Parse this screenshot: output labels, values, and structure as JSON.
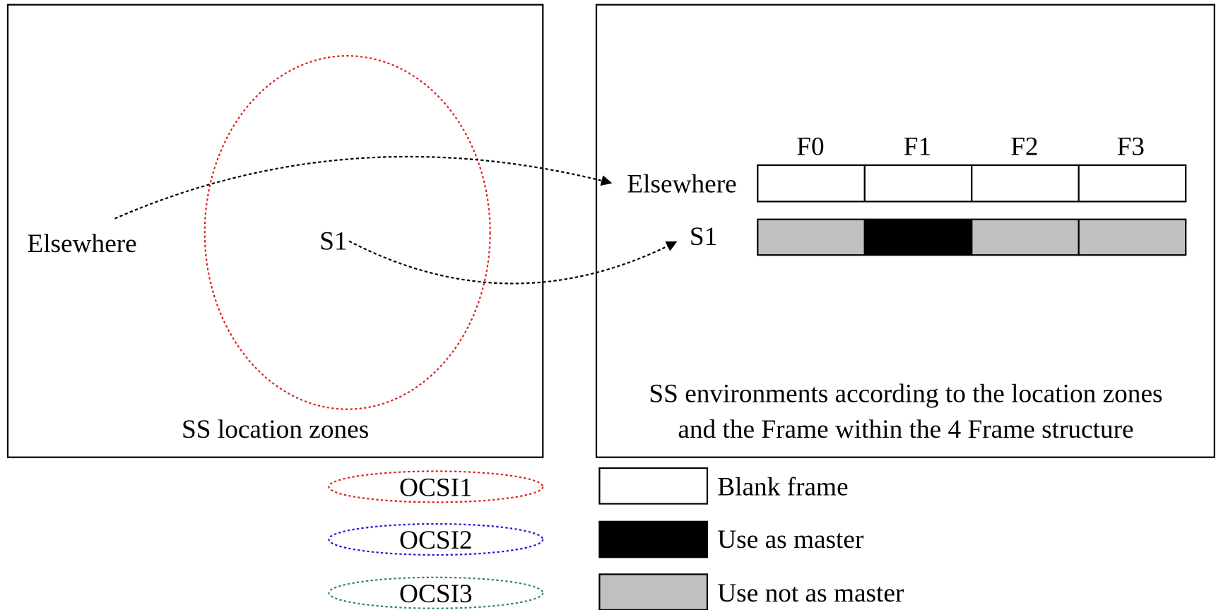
{
  "left_panel": {
    "caption": "SS location zones",
    "labels": [
      "Elsewhere",
      "S1"
    ]
  },
  "right_panel": {
    "frames": [
      "F0",
      "F1",
      "F2",
      "F3"
    ],
    "rows": [
      "Elsewhere",
      "S1"
    ],
    "caption": [
      "SS environments according to the location zones",
      "and the Frame within the 4 Frame structure"
    ]
  },
  "legend": {
    "zones": [
      "OCSI1",
      "OCSI2",
      "OCSI3"
    ],
    "frames": [
      "Blank frame",
      "Use as master",
      "Use not as master"
    ]
  }
}
